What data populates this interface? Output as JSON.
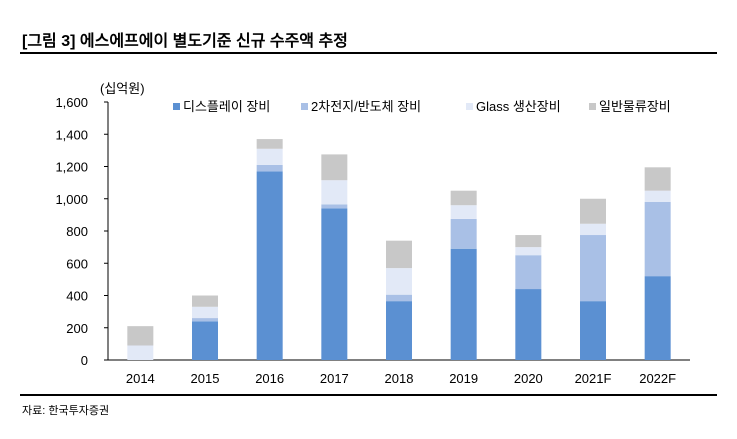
{
  "title": "[그림 3] 에스에프에이 별도기준 신규 수주액 추정",
  "source": "자료: 한국투자증권",
  "chart_data": {
    "type": "bar",
    "stacked": true,
    "unit_label": "(십억원)",
    "categories": [
      "2014",
      "2015",
      "2016",
      "2017",
      "2018",
      "2019",
      "2020",
      "2021F",
      "2022F"
    ],
    "series": [
      {
        "name": "디스플레이 장비",
        "color": "#5b90d2",
        "values": [
          0,
          240,
          1170,
          940,
          365,
          690,
          440,
          365,
          520
        ]
      },
      {
        "name": "2차전지/반도체 장비",
        "color": "#a9c0e6",
        "values": [
          0,
          20,
          40,
          25,
          40,
          185,
          210,
          410,
          460
        ]
      },
      {
        "name": "Glass 생산장비",
        "color": "#e2e9f7",
        "values": [
          90,
          70,
          100,
          150,
          165,
          85,
          50,
          70,
          70
        ]
      },
      {
        "name": "일반물류장비",
        "color": "#c8c8c8",
        "values": [
          120,
          70,
          60,
          160,
          170,
          90,
          75,
          155,
          145
        ]
      }
    ],
    "ylim": [
      0,
      1600
    ],
    "yticks": [
      0,
      200,
      400,
      600,
      800,
      1000,
      1200,
      1400,
      1600
    ],
    "ytick_labels": [
      "0",
      "200",
      "400",
      "600",
      "800",
      "1,000",
      "1,200",
      "1,400",
      "1,600"
    ],
    "xlabel": "",
    "ylabel": "",
    "legend_position": "top",
    "grid": false
  }
}
